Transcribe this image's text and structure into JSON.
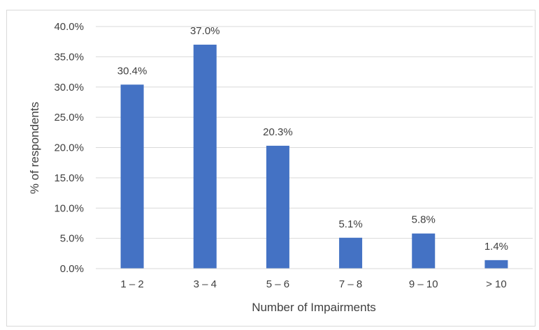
{
  "chart_data": {
    "type": "bar",
    "title": "",
    "xlabel": "Number of Impairments",
    "ylabel": "% of respondents",
    "categories": [
      "1 – 2",
      "3 – 4",
      "5 – 6",
      "7 – 8",
      "9 – 10",
      "> 10"
    ],
    "values": [
      30.4,
      37.0,
      20.3,
      5.1,
      5.8,
      1.4
    ],
    "value_labels": [
      "30.4%",
      "37.0%",
      "20.3%",
      "5.1%",
      "5.8%",
      "1.4%"
    ],
    "y_ticks": [
      "0.0%",
      "5.0%",
      "10.0%",
      "15.0%",
      "20.0%",
      "25.0%",
      "30.0%",
      "35.0%",
      "40.0%"
    ],
    "ylim": [
      0,
      40
    ],
    "grid": true,
    "legend": "none",
    "colors": {
      "bar": "#4472C4",
      "grid": "#d9d9d9",
      "text": "#404040"
    }
  }
}
